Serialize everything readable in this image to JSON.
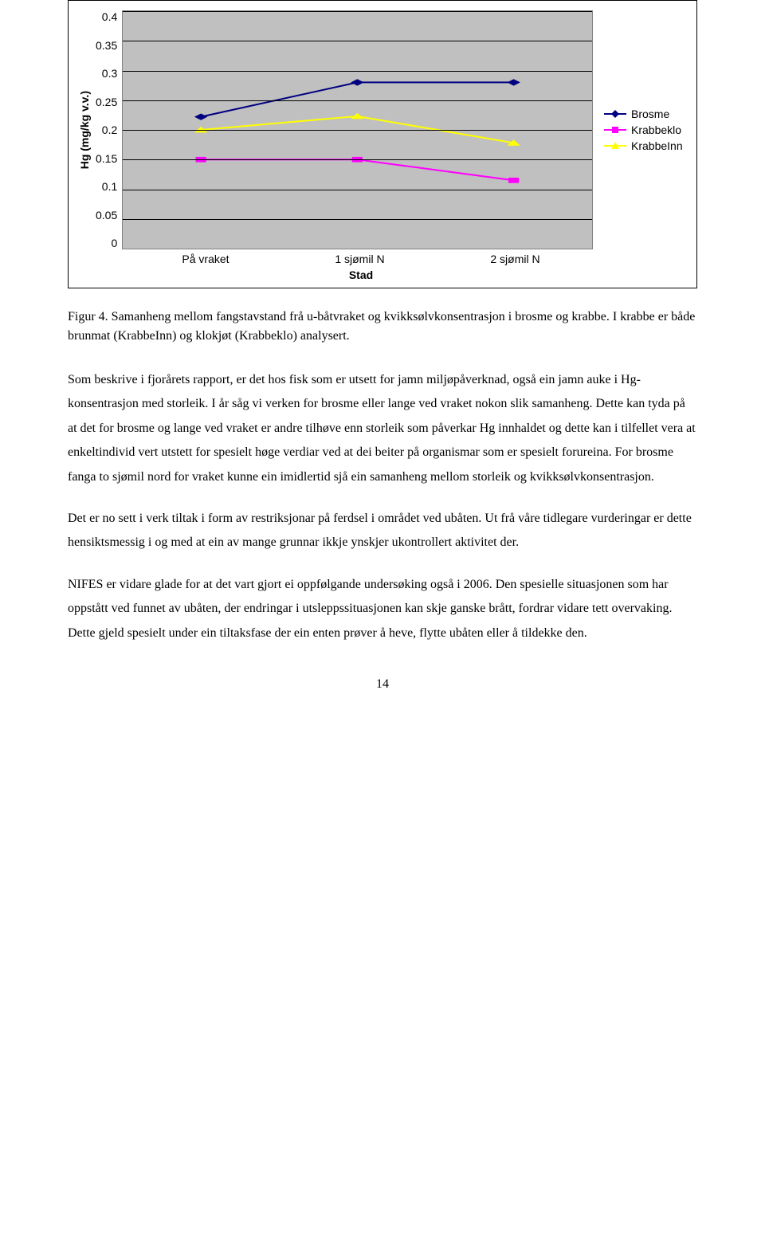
{
  "chart": {
    "type": "line",
    "y_label": "Hg (mg/kg v.v.)",
    "x_title": "Stad",
    "ylim": [
      0,
      0.4
    ],
    "ytick_step": 0.05,
    "yticks": [
      "0.4",
      "0.35",
      "0.3",
      "0.25",
      "0.2",
      "0.15",
      "0.1",
      "0.05",
      "0"
    ],
    "categories": [
      "På vraket",
      "1 sjømil N",
      "2 sjømil N"
    ],
    "background_color": "#c0c0c0",
    "grid_color": "#000000",
    "series": [
      {
        "name": "Brosme",
        "color": "#000080",
        "marker": "diamond",
        "values": [
          0.222,
          0.28,
          0.28
        ]
      },
      {
        "name": "Krabbeklo",
        "color": "#ff00ff",
        "marker": "square",
        "values": [
          0.15,
          0.15,
          0.115
        ]
      },
      {
        "name": "KrabbeInn",
        "color": "#ffff00",
        "marker": "triangle",
        "values": [
          0.2,
          0.223,
          0.178
        ]
      }
    ],
    "legend": {
      "items": [
        "Brosme",
        "Krabbeklo",
        "KrabbeInn"
      ]
    },
    "line_width": 2,
    "marker_size": 6
  },
  "caption": "Figur 4. Samanheng mellom fangstavstand frå u-båtvraket og kvikksølvkonsentrasjon i brosme og krabbe. I krabbe er både brunmat (KrabbeInn) og klokjøt (Krabbeklo) analysert.",
  "paragraphs": [
    "Som beskrive i fjorårets rapport, er det hos fisk som er utsett for jamn miljøpåverknad, også ein jamn auke i Hg-konsentrasjon med storleik. I år såg vi verken for brosme eller lange ved vraket nokon slik samanheng. Dette kan tyda på at det for brosme og lange ved vraket er andre tilhøve enn storleik som påverkar Hg innhaldet og dette kan i tilfellet vera at enkeltindivid vert utstett for spesielt høge verdiar ved at dei beiter på organismar som er spesielt forureina. For brosme fanga to sjømil nord for vraket kunne ein imidlertid sjå ein samanheng mellom storleik og kvikksølvkonsentrasjon.",
    "Det er no sett i verk tiltak i form av restriksjonar på ferdsel i området ved ubåten. Ut frå våre tidlegare vurderingar er dette hensiktsmessig i og med at ein av mange grunnar ikkje ynskjer ukontrollert aktivitet der.",
    "NIFES er vidare glade for at det vart gjort ei oppfølgande undersøking også i 2006. Den spesielle situasjonen som har oppstått ved funnet av ubåten, der endringar i utsleppssituasjonen kan skje ganske brått, fordrar vidare tett overvaking. Dette gjeld spesielt under ein tiltaksfase der ein enten prøver å heve, flytte ubåten eller å tildekke den."
  ],
  "page_number": "14"
}
